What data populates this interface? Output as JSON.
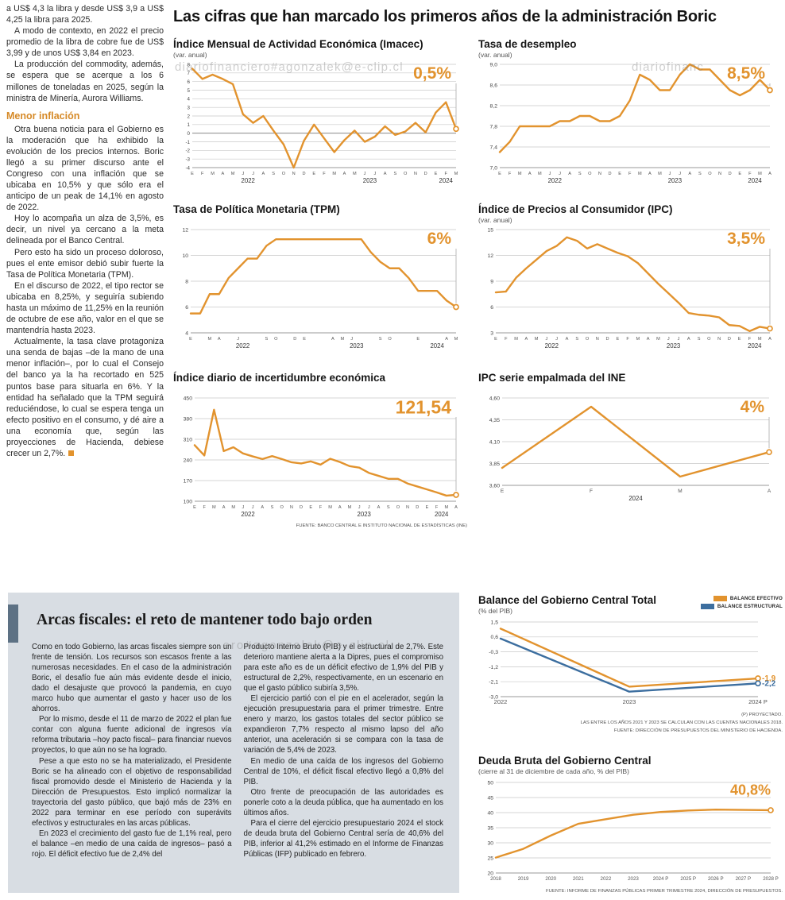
{
  "page": {
    "headline": "Las cifras que han marcado los primeros años de la administración Boric",
    "watermark1": "diariofinanciero#agonzalek@e-clip.cl",
    "watermark2": "diariofinanc",
    "watermark3": "...ero#agonzalek@e-clip.cl"
  },
  "article": {
    "paragraphs": [
      "a US$ 4,3 la libra y desde US$ 3,9 a US$ 4,25 la libra para 2025.",
      "A modo de contexto, en 2022 el precio promedio de la libra de cobre fue de US$ 3,99 y de unos US$ 3,84 en 2023.",
      "La producción del commodity, además, se espera que se acerque a los 6 millones de toneladas en 2025, según la ministra de Minería, Aurora Williams."
    ],
    "subhead": "Menor inflación",
    "paragraphs2": [
      "Otra buena noticia para el Gobierno es la moderación que ha exhibido la evolución de los precios internos. Boric llegó a su primer discurso ante el Congreso con una inflación que se ubicaba en 10,5% y que sólo era el anticipo de un peak de 14,1% en agosto de 2022.",
      "Hoy lo acompaña un alza de 3,5%, es decir, un nivel ya cercano a la meta delineada por el Banco Central.",
      "Pero esto ha sido un proceso doloroso, pues el ente emisor debió subir fuerte la Tasa de Política Monetaria (TPM).",
      "En el discurso de 2022, el tipo rector se ubicaba en 8,25%, y seguiría subiendo hasta un máximo de 11,25% en la reunión de octubre de ese año, valor en el que se mantendría hasta 2023.",
      "Actualmente, la tasa clave protagoniza una senda de bajas –de la mano de una menor inflación–, por lo cual el Consejo del banco ya la ha recortado en 525 puntos base para situarla en 6%. Y la entidad ha señalado que la TPM seguirá reduciéndose, lo cual se espera tenga un efecto positivo en el consumo, y dé aire a una economía que, según las proyecciones de Hacienda, debiese crecer un 2,7%."
    ]
  },
  "arcas": {
    "title": "Arcas fiscales: el reto de mantener todo bajo orden",
    "col1": [
      "Como en todo Gobierno, las arcas fiscales siempre son un frente de tensión. Los recursos son escasos frente a las numerosas necesidades. En el caso de la administración Boric, el desafío fue aún más evidente desde el inicio, dado el desajuste que provocó la pandemia, en cuyo marco hubo que aumentar el gasto y hacer uso de los ahorros.",
      "Por lo mismo, desde el 11 de marzo de 2022 el plan fue contar con alguna fuente adicional de ingresos vía reforma tributaria –hoy pacto fiscal– para financiar nuevos proyectos, lo que aún no se ha logrado.",
      "Pese a que esto no se ha materializado, el Presidente Boric se ha alineado con el objetivo de responsabilidad fiscal promovido desde el Ministerio de Hacienda y la Dirección de Presupuestos. Esto implicó normalizar la trayectoria del gasto público, que bajó más de 23% en 2022 para terminar en ese período con superávits efectivos y estructurales en las arcas públicas.",
      "En 2023 el crecimiento del gasto fue de 1,1% real, pero el balance –en medio de una caída de ingresos– pasó a rojo. El déficit efectivo fue de 2,4% del"
    ],
    "col2": [
      "Producto Interno Bruto (PIB) y el estructural de 2,7%. Este deterioro mantiene alerta a la Dipres, pues el compromiso para este año es de un déficit efectivo de 1,9% del PIB y estructural de 2,2%, respectivamente, en un escenario en que el gasto público subiría 3,5%.",
      "El ejercicio partió con el pie en el acelerador, según la ejecución presupuestaria para el primer trimestre. Entre enero y marzo, los gastos totales del sector público se expandieron 7,7% respecto al mismo lapso del año anterior, una aceleración si se compara con la tasa de variación de 5,4% de 2023.",
      "En medio de una caída de los ingresos del Gobierno Central de 10%, el déficit fiscal efectivo llegó a 0,8% del PIB.",
      "Otro frente de preocupación de las autoridades es ponerle coto a la deuda pública, que ha aumentado en los últimos años.",
      "Para el cierre del ejercicio presupuestario 2024 el stock de deuda bruta del Gobierno Central sería de 40,6% del PIB, inferior al 41,2% estimado en el Informe de Finanzas Públicas (IFP) publicado en febrero."
    ]
  },
  "chart_data": [
    {
      "type": "line",
      "title": "Índice Mensual de Actividad Económica (Imacec)",
      "subtitle": "(var. anual)",
      "highlight": "0,5%",
      "highlight_color": "#e2932e",
      "highlight_size": 21,
      "leader": true,
      "end_marker": true,
      "zero_line": true,
      "ylim": [
        -4,
        8
      ],
      "yticks": [
        {
          "v": 8,
          "label": "8"
        },
        {
          "v": 7,
          "label": "7"
        },
        {
          "v": 6,
          "label": "6"
        },
        {
          "v": 5,
          "label": "5"
        },
        {
          "v": 4,
          "label": "4"
        },
        {
          "v": 3,
          "label": "3"
        },
        {
          "v": 2,
          "label": "2"
        },
        {
          "v": 1,
          "label": "1"
        },
        {
          "v": 0,
          "label": "0"
        },
        {
          "v": -1,
          "label": "-1"
        },
        {
          "v": -2,
          "label": "-2"
        },
        {
          "v": -3,
          "label": "-3"
        },
        {
          "v": -4,
          "label": "-4"
        }
      ],
      "ytick_size": 6.2,
      "x_labels": [
        "E",
        "F",
        "M",
        "A",
        "M",
        "J",
        "J",
        "A",
        "S",
        "O",
        "N",
        "D",
        "E",
        "F",
        "M",
        "A",
        "M",
        "J",
        "J",
        "A",
        "S",
        "O",
        "N",
        "D",
        "E",
        "F",
        "M"
      ],
      "xlabel_size": 5.6,
      "years": [
        {
          "label": "2022",
          "from": 0,
          "to": 11
        },
        {
          "label": "2023",
          "from": 12,
          "to": 23
        },
        {
          "label": "2024",
          "from": 24,
          "to": 26
        }
      ],
      "margins": {
        "l": 24,
        "r": 12,
        "t": 6,
        "b": 26
      },
      "series": [
        {
          "name": "Imacec var. anual",
          "color": "#e2932e",
          "values": [
            7.5,
            6.3,
            6.8,
            6.3,
            5.7,
            2.2,
            1.2,
            2.0,
            0.3,
            -1.3,
            -4.0,
            -0.9,
            1.0,
            -0.6,
            -2.2,
            -0.8,
            0.3,
            -1.0,
            -0.4,
            0.8,
            -0.2,
            0.2,
            1.2,
            0.1,
            2.4,
            3.6,
            0.5
          ]
        }
      ]
    },
    {
      "type": "line",
      "title": "Tasa de desempleo",
      "subtitle": "(var. anual)",
      "highlight": "8,5%",
      "highlight_color": "#e2932e",
      "highlight_size": 21,
      "leader": true,
      "end_marker": true,
      "ylim": [
        7.0,
        9.0
      ],
      "yticks": [
        {
          "v": 9.0,
          "label": "9,0"
        },
        {
          "v": 8.6,
          "label": "8,6"
        },
        {
          "v": 8.2,
          "label": "8,2"
        },
        {
          "v": 7.8,
          "label": "7,8"
        },
        {
          "v": 7.4,
          "label": "7,4"
        },
        {
          "v": 7.0,
          "label": "7,0"
        }
      ],
      "x_labels": [
        "E",
        "F",
        "M",
        "A",
        "M",
        "J",
        "J",
        "A",
        "S",
        "O",
        "N",
        "D",
        "E",
        "F",
        "M",
        "A",
        "M",
        "J",
        "J",
        "A",
        "S",
        "O",
        "N",
        "D",
        "E",
        "F",
        "M",
        "A"
      ],
      "xlabel_size": 5.6,
      "years": [
        {
          "label": "2022",
          "from": 0,
          "to": 11
        },
        {
          "label": "2023",
          "from": 12,
          "to": 23
        },
        {
          "label": "2024",
          "from": 24,
          "to": 27
        }
      ],
      "margins": {
        "l": 27,
        "r": 13,
        "t": 6,
        "b": 26
      },
      "series": [
        {
          "name": "Tasa de desempleo",
          "color": "#e2932e",
          "values": [
            7.3,
            7.5,
            7.8,
            7.8,
            7.8,
            7.8,
            7.9,
            7.9,
            8.0,
            8.0,
            7.9,
            7.9,
            8.0,
            8.3,
            8.8,
            8.7,
            8.5,
            8.5,
            8.8,
            9.0,
            8.9,
            8.9,
            8.7,
            8.5,
            8.4,
            8.5,
            8.7,
            8.5
          ]
        }
      ]
    },
    {
      "type": "line",
      "title": "Tasa de Política Monetaria (TPM)",
      "subtitle": "",
      "highlight": "6%",
      "highlight_color": "#e2932e",
      "highlight_size": 21,
      "leader": true,
      "end_marker": true,
      "ylim": [
        4,
        12
      ],
      "yticks": [
        {
          "v": 12,
          "label": "12"
        },
        {
          "v": 10,
          "label": "10"
        },
        {
          "v": 8,
          "label": "8"
        },
        {
          "v": 6,
          "label": "6"
        },
        {
          "v": 4,
          "label": "4"
        }
      ],
      "x_labels": [
        "E",
        "",
        "M",
        "A",
        "",
        "J",
        "",
        "",
        "S",
        "O",
        "",
        "D",
        "E",
        "",
        "",
        "A",
        "M",
        "J",
        "",
        "",
        "S",
        "O",
        "",
        "",
        "E",
        "",
        "",
        "A",
        "M"
      ],
      "xlabel_size": 5.6,
      "years": [
        {
          "label": "2022",
          "from": 0,
          "to": 11
        },
        {
          "label": "2023",
          "from": 12,
          "to": 23
        },
        {
          "label": "2024",
          "from": 24,
          "to": 28
        }
      ],
      "margins": {
        "l": 22,
        "r": 12,
        "t": 6,
        "b": 26
      },
      "series": [
        {
          "name": "TPM",
          "color": "#e2932e",
          "values": [
            5.5,
            5.5,
            7.0,
            7.0,
            8.25,
            9.0,
            9.75,
            9.75,
            10.75,
            11.25,
            11.25,
            11.25,
            11.25,
            11.25,
            11.25,
            11.25,
            11.25,
            11.25,
            11.25,
            10.25,
            9.5,
            9.0,
            9.0,
            8.25,
            7.25,
            7.25,
            7.25,
            6.5,
            6.0
          ]
        }
      ]
    },
    {
      "type": "line",
      "title": "Índice de Precios al Consumidor (IPC)",
      "subtitle": "(var. anual)",
      "highlight": "3,5%",
      "highlight_color": "#e2932e",
      "highlight_size": 21,
      "leader": true,
      "end_marker": true,
      "ylim": [
        3,
        15
      ],
      "yticks": [
        {
          "v": 15,
          "label": "15"
        },
        {
          "v": 12,
          "label": "12"
        },
        {
          "v": 9,
          "label": "9"
        },
        {
          "v": 6,
          "label": "6"
        },
        {
          "v": 3,
          "label": "3"
        }
      ],
      "x_labels": [
        "E",
        "F",
        "M",
        "A",
        "M",
        "J",
        "J",
        "A",
        "S",
        "O",
        "N",
        "D",
        "E",
        "F",
        "M",
        "A",
        "M",
        "J",
        "J",
        "A",
        "S",
        "O",
        "N",
        "D",
        "E",
        "F",
        "M",
        "A"
      ],
      "xlabel_size": 5.6,
      "years": [
        {
          "label": "2022",
          "from": 0,
          "to": 11
        },
        {
          "label": "2023",
          "from": 12,
          "to": 23
        },
        {
          "label": "2024",
          "from": 24,
          "to": 27
        }
      ],
      "margins": {
        "l": 22,
        "r": 13,
        "t": 6,
        "b": 26
      },
      "series": [
        {
          "name": "IPC var. anual",
          "color": "#e2932e",
          "values": [
            7.7,
            7.8,
            9.4,
            10.5,
            11.5,
            12.5,
            13.1,
            14.1,
            13.7,
            12.8,
            13.3,
            12.8,
            12.3,
            11.9,
            11.1,
            9.9,
            8.7,
            7.6,
            6.5,
            5.3,
            5.1,
            5.0,
            4.8,
            3.9,
            3.8,
            3.2,
            3.7,
            3.5
          ]
        }
      ]
    },
    {
      "type": "line",
      "title": "Índice diario de incertidumbre económica",
      "subtitle": "",
      "highlight": "121,54",
      "highlight_color": "#e2932e",
      "highlight_size": 23,
      "leader": true,
      "end_marker": true,
      "ylim": [
        100,
        450
      ],
      "yticks": [
        {
          "v": 450,
          "label": "450"
        },
        {
          "v": 380,
          "label": "380"
        },
        {
          "v": 310,
          "label": "310"
        },
        {
          "v": 240,
          "label": "240"
        },
        {
          "v": 170,
          "label": "170"
        },
        {
          "v": 100,
          "label": "100"
        }
      ],
      "x_labels": [
        "E",
        "F",
        "M",
        "A",
        "M",
        "J",
        "J",
        "A",
        "S",
        "O",
        "N",
        "D",
        "E",
        "F",
        "M",
        "A",
        "M",
        "J",
        "J",
        "A",
        "S",
        "O",
        "N",
        "D",
        "E",
        "F",
        "M",
        "A"
      ],
      "xlabel_size": 5.6,
      "years": [
        {
          "label": "2022",
          "from": 0,
          "to": 11
        },
        {
          "label": "2023",
          "from": 12,
          "to": 23
        },
        {
          "label": "2024",
          "from": 24,
          "to": 27
        }
      ],
      "margins": {
        "l": 27,
        "r": 12,
        "t": 6,
        "b": 26
      },
      "source": "FUENTE: BANCO CENTRAL E INSTITUTO NACIONAL DE ESTADÍSTICAS (INE)",
      "series": [
        {
          "name": "Incertidumbre económica",
          "color": "#e2932e",
          "values": [
            290,
            255,
            410,
            270,
            283,
            262,
            252,
            243,
            253,
            243,
            232,
            228,
            235,
            224,
            244,
            233,
            219,
            214,
            196,
            186,
            176,
            176,
            160,
            150,
            140,
            130,
            119,
            121.54
          ]
        }
      ]
    },
    {
      "type": "line",
      "title": "IPC serie empalmada del INE",
      "subtitle": "",
      "highlight": "4%",
      "highlight_color": "#e2932e",
      "highlight_size": 21,
      "leader": true,
      "end_marker": true,
      "ylim": [
        3.6,
        4.6
      ],
      "yticks": [
        {
          "v": 4.6,
          "label": "4,60"
        },
        {
          "v": 4.35,
          "label": "4,35"
        },
        {
          "v": 4.1,
          "label": "4,10"
        },
        {
          "v": 3.85,
          "label": "3,85"
        },
        {
          "v": 3.6,
          "label": "3,60"
        }
      ],
      "x_labels": [
        "E",
        "F",
        "M",
        "A"
      ],
      "xlabel_size": 6.5,
      "years": [
        {
          "label": "2024",
          "from": 0,
          "to": 3
        }
      ],
      "margins": {
        "l": 30,
        "r": 14,
        "t": 6,
        "b": 24
      },
      "series": [
        {
          "name": "IPC serie empalmada",
          "color": "#e2932e",
          "values": [
            3.8,
            4.5,
            3.7,
            3.98
          ]
        }
      ]
    },
    {
      "type": "line",
      "title": "Balance del Gobierno Central Total",
      "subtitle": "(% del PIB)",
      "end_marker": true,
      "ylim": [
        -3.0,
        1.5
      ],
      "yticks": [
        {
          "v": 1.5,
          "label": "1,5"
        },
        {
          "v": 0.6,
          "label": "0,6"
        },
        {
          "v": -0.3,
          "label": "-0,3"
        },
        {
          "v": -1.2,
          "label": "-1,2"
        },
        {
          "v": -2.1,
          "label": "-2,1"
        },
        {
          "v": -3.0,
          "label": "-3,0"
        }
      ],
      "x_labels": [
        "2022",
        "2023",
        "2024 P"
      ],
      "xlabel_size": 7.5,
      "margins": {
        "l": 28,
        "r": 30,
        "t": 8,
        "b": 16
      },
      "legend": [
        {
          "label": "BALANCE EFECTIVO",
          "color": "#e2932e"
        },
        {
          "label": "BALANCE ESTRUCTURAL",
          "color": "#3c6e9f"
        }
      ],
      "series": [
        {
          "name": "BALANCE EFECTIVO",
          "color": "#e2932e",
          "values": [
            1.1,
            -2.4,
            -1.9
          ],
          "end_label": "-1,9"
        },
        {
          "name": "BALANCE ESTRUCTURAL",
          "color": "#3c6e9f",
          "values": [
            0.5,
            -2.7,
            -2.2
          ],
          "end_label": "-2,2"
        }
      ],
      "notes": [
        "(P) PROYECTADO.",
        "LAS ENTRE LOS AÑOS 2021 Y 2023 SE CALCULAN  CON LAS CUENTAS NACIONALES 2018.",
        "FUENTE: DIRECCIÓN DE PRESUPUESTOS DEL MINISTERIO DE HACIENDA."
      ]
    },
    {
      "type": "line",
      "title": "Deuda Bruta del Gobierno Central",
      "subtitle": "(cierre al 31 de diciembre de cada año, % del PIB)",
      "highlight": "40,8%",
      "highlight_color": "#e2932e",
      "highlight_size": 18,
      "leader": false,
      "end_marker": true,
      "ylim": [
        20,
        50
      ],
      "yticks": [
        {
          "v": 50,
          "label": "50"
        },
        {
          "v": 45,
          "label": "45"
        },
        {
          "v": 40,
          "label": "40"
        },
        {
          "v": 35,
          "label": "35"
        },
        {
          "v": 30,
          "label": "30"
        },
        {
          "v": 25,
          "label": "25"
        },
        {
          "v": 20,
          "label": "20"
        }
      ],
      "x_labels": [
        "2018",
        "2019",
        "2020",
        "2021",
        "2022",
        "2023",
        "2024 P",
        "2025 P",
        "2026 P",
        "2027 P",
        "2028 P"
      ],
      "xlabel_size": 6.2,
      "margins": {
        "l": 22,
        "r": 14,
        "t": 8,
        "b": 16
      },
      "source": "FUENTE: INFORME DE FINANZAS PÚBLICAS PRIMER TRIMESTRE 2024, DIRECCIÓN DE PRESUPUESTOS.",
      "series": [
        {
          "name": "Deuda bruta % del PIB",
          "color": "#e2932e",
          "values": [
            25.1,
            28.0,
            32.4,
            36.3,
            37.8,
            39.3,
            40.2,
            40.7,
            41.0,
            40.9,
            40.8
          ]
        }
      ]
    }
  ]
}
